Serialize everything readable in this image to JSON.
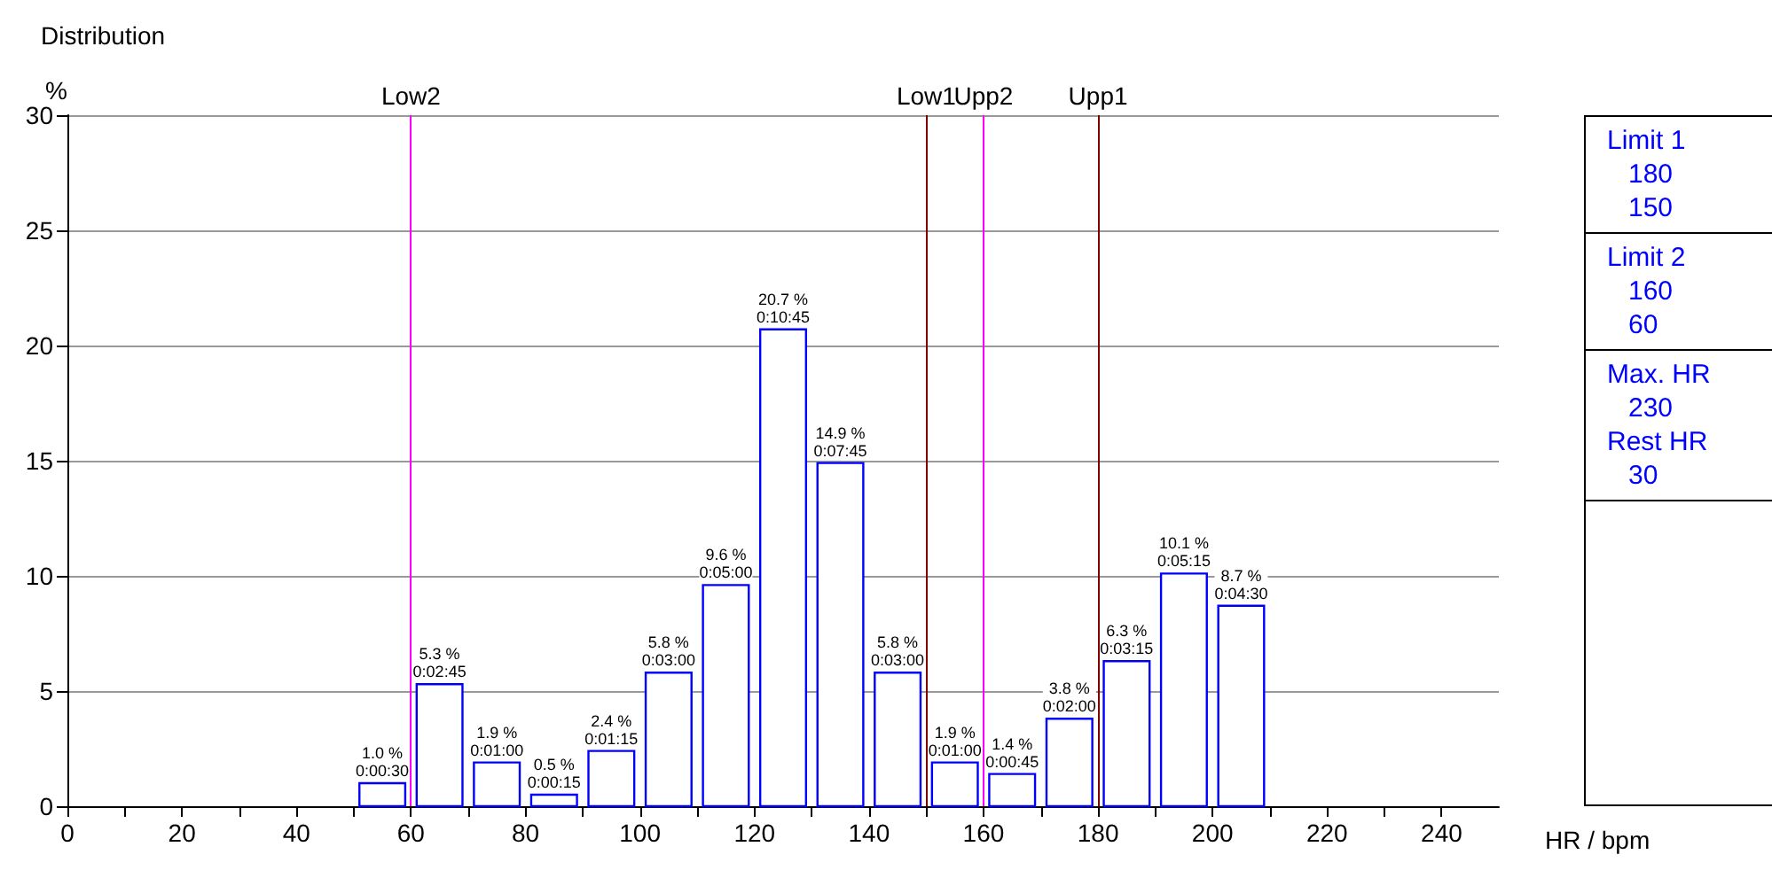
{
  "chart_data": {
    "type": "histogram",
    "title": "Distribution",
    "xlabel": "HR / bpm",
    "ylabel": "%",
    "bins": [
      50,
      60,
      70,
      80,
      90,
      100,
      110,
      120,
      130,
      140,
      150,
      160,
      170,
      180,
      190,
      200,
      210
    ],
    "values": [
      1.0,
      5.3,
      1.9,
      0.5,
      2.4,
      5.8,
      9.6,
      20.7,
      14.9,
      5.8,
      1.9,
      1.4,
      3.8,
      6.3,
      10.1,
      8.7
    ],
    "color": "#0000ff",
    "value_labels": [
      "1.0 %\n0:00:30",
      "5.3 %\n0:02:45",
      "1.9 %\n0:01:00",
      "0.5 %\n0:00:15",
      "2.4 %\n0:01:15",
      "5.8 %\n0:03:00",
      "9.6 %\n0:05:00",
      "20.7 %\n0:10:45",
      "14.9 %\n0:07:45",
      "5.8 %\n0:03:00",
      "1.9 %\n0:01:00",
      "1.4 %\n0:00:45",
      "3.8 %\n0:02:00",
      "6.3 %\n0:03:15",
      "10.1 %\n0:05:15",
      "8.7 %\n0:04:30"
    ],
    "xlim": [
      0,
      250
    ],
    "xticks": [
      0,
      {
        "value": 10,
        "label": null
      },
      20,
      {
        "value": 30,
        "label": null
      },
      40,
      {
        "value": 50,
        "label": null
      },
      60,
      {
        "value": 70,
        "label": null
      },
      80,
      {
        "value": 90,
        "label": null
      },
      100,
      {
        "value": 110,
        "label": null
      },
      120,
      {
        "value": 130,
        "label": null
      },
      140,
      {
        "value": 150,
        "label": null
      },
      160,
      {
        "value": 170,
        "label": null
      },
      180,
      {
        "value": 190,
        "label": null
      },
      200,
      {
        "value": 210,
        "label": null
      },
      220,
      {
        "value": 230,
        "label": null
      },
      240
    ],
    "ylim": [
      0,
      30
    ],
    "yticks": [
      0,
      5,
      10,
      15,
      20,
      25,
      30
    ],
    "grid": "y",
    "ref_lines": [
      {
        "axis": "x",
        "value": 60,
        "label": "Low2",
        "color": "#ff00ff"
      },
      {
        "axis": "x",
        "value": 150,
        "label": "Low1",
        "color": "#800000"
      },
      {
        "axis": "x",
        "value": 160,
        "label": "Upp2",
        "color": "#ff00ff"
      },
      {
        "axis": "x",
        "value": 180,
        "label": "Upp1",
        "color": "#800000"
      }
    ],
    "annotations": [
      "Limit 1\n180\n150",
      "Limit 2\n160\n60",
      "Max. HR\n230\nRest HR\n30"
    ]
  }
}
